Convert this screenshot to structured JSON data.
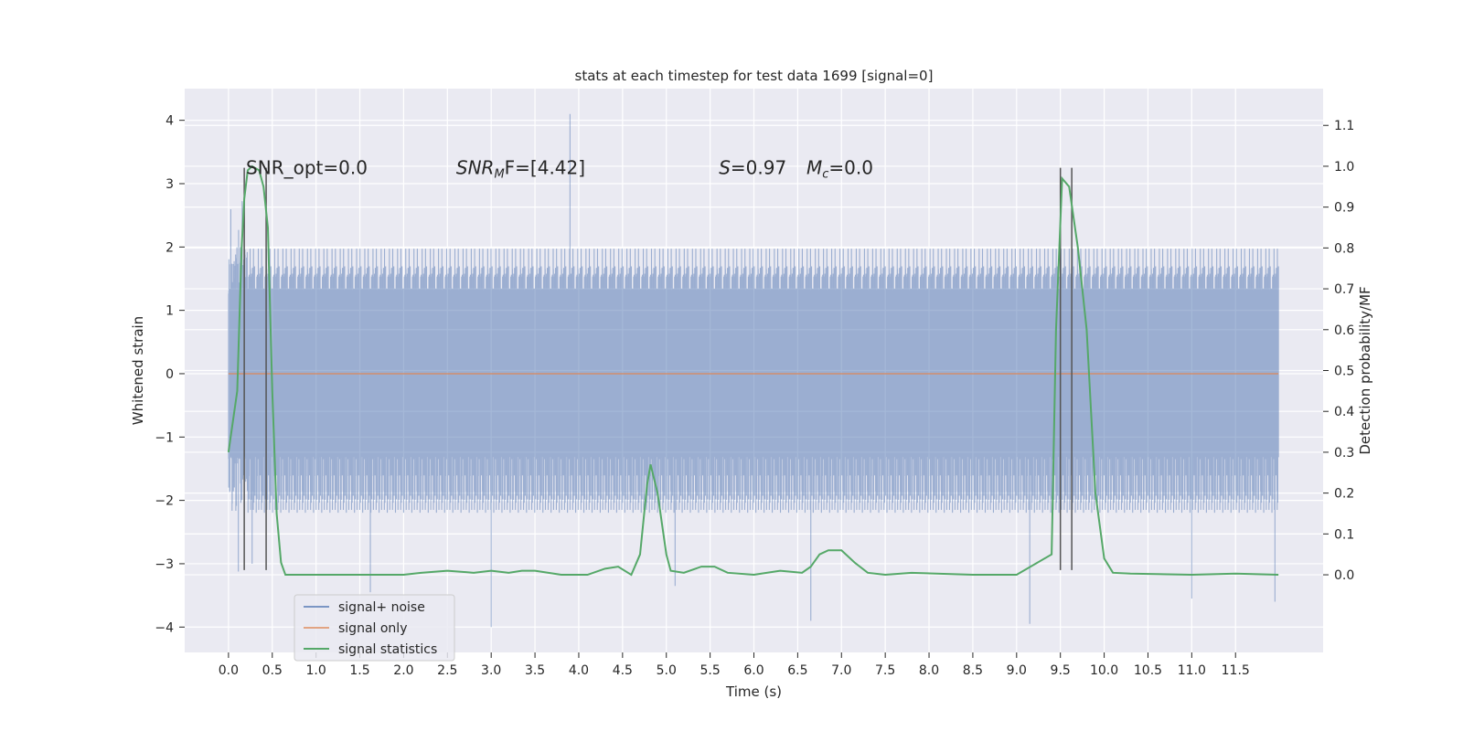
{
  "chart_data": {
    "type": "line",
    "title": "stats at each timestep for test data 1699 [signal=0]",
    "xlabel": "Time (s)",
    "ylabel_left": "Whitened strain",
    "ylabel_right": "Detection probability/MF",
    "xlim": [
      -0.5,
      12.5
    ],
    "ylim_left": [
      -4.4,
      4.5
    ],
    "ylim_right": [
      -0.19,
      1.19
    ],
    "x_ticks": [
      0.0,
      0.5,
      1.0,
      1.5,
      2.0,
      2.5,
      3.0,
      3.5,
      4.0,
      4.5,
      5.0,
      5.5,
      6.0,
      6.5,
      7.0,
      7.5,
      8.0,
      8.5,
      9.0,
      9.5,
      10.0,
      10.5,
      11.0,
      11.5
    ],
    "x_tick_labels": [
      "0.0",
      "0.5",
      "1.0",
      "1.5",
      "2.0",
      "2.5",
      "3.0",
      "3.5",
      "4.0",
      "4.5",
      "5.0",
      "5.5",
      "6.0",
      "6.5",
      "7.0",
      "7.5",
      "8.0",
      "8.5",
      "9.0",
      "9.5",
      "10.0",
      "10.5",
      "11.0",
      "11.5"
    ],
    "y_left_ticks": [
      -4,
      -3,
      -2,
      -1,
      0,
      1,
      2,
      3,
      4
    ],
    "y_left_tick_labels": [
      "−4",
      "−3",
      "−2",
      "−1",
      "0",
      "1",
      "2",
      "3",
      "4"
    ],
    "y_right_ticks": [
      0.0,
      0.1,
      0.2,
      0.3,
      0.4,
      0.5,
      0.6,
      0.7,
      0.8,
      0.9,
      1.0,
      1.1
    ],
    "y_right_tick_labels": [
      "0.0",
      "0.1",
      "0.2",
      "0.3",
      "0.4",
      "0.5",
      "0.6",
      "0.7",
      "0.8",
      "0.9",
      "1.0",
      "1.1"
    ],
    "grid": true,
    "legend_placement": "lower-left",
    "series": [
      {
        "name": "signal+ noise",
        "axis": "left",
        "color": "#4c72b0",
        "x_range": [
          0.0,
          11.99
        ],
        "typical_range": [
          -1.3,
          1.3
        ],
        "envelope_range": [
          -2.2,
          2.0
        ],
        "min": -4.0,
        "max": 4.1
      },
      {
        "name": "signal only",
        "axis": "left",
        "color": "#dd8452",
        "x": [
          0.0,
          11.99
        ],
        "y": [
          0.0,
          0.0
        ]
      },
      {
        "name": "signal statistics",
        "axis": "right",
        "color": "#55a868",
        "x": [
          0.0,
          0.1,
          0.15,
          0.18,
          0.22,
          0.27,
          0.35,
          0.4,
          0.45,
          0.5,
          0.55,
          0.6,
          0.65,
          0.7,
          1.0,
          2.0,
          2.2,
          2.5,
          2.8,
          3.0,
          3.2,
          3.35,
          3.5,
          3.8,
          4.1,
          4.3,
          4.45,
          4.6,
          4.7,
          4.78,
          4.82,
          4.9,
          5.0,
          5.05,
          5.2,
          5.4,
          5.55,
          5.7,
          6.0,
          6.3,
          6.55,
          6.65,
          6.75,
          6.85,
          7.0,
          7.15,
          7.3,
          7.5,
          7.8,
          8.5,
          9.0,
          9.4,
          9.45,
          9.52,
          9.6,
          9.7,
          9.8,
          9.9,
          10.0,
          10.1,
          10.3,
          11.0,
          11.5,
          11.99
        ],
        "y": [
          0.3,
          0.45,
          0.8,
          0.92,
          0.99,
          1.0,
          0.99,
          0.95,
          0.85,
          0.45,
          0.15,
          0.03,
          0.0,
          0.0,
          0.0,
          0.0,
          0.005,
          0.01,
          0.005,
          0.01,
          0.005,
          0.01,
          0.01,
          0.0,
          0.0,
          0.015,
          0.02,
          0.0,
          0.05,
          0.22,
          0.27,
          0.2,
          0.05,
          0.01,
          0.005,
          0.02,
          0.02,
          0.005,
          0.0,
          0.01,
          0.005,
          0.02,
          0.05,
          0.06,
          0.06,
          0.03,
          0.005,
          0.0,
          0.005,
          0.0,
          0.0,
          0.05,
          0.6,
          0.97,
          0.95,
          0.8,
          0.6,
          0.2,
          0.04,
          0.005,
          0.003,
          0.0,
          0.003,
          0.0
        ]
      }
    ],
    "vertical_lines_x": [
      0.18,
      0.43,
      9.5,
      9.63
    ],
    "vertical_lines_ymin": -3.1,
    "vertical_lines_ymax": 3.25,
    "vertical_lines_color": "#555555",
    "annotations": [
      {
        "text": "SNR_opt=0.0",
        "x": 0.2,
        "y": 3.15
      },
      {
        "text": "SNR",
        "sub": "M",
        "suffix": "F=[4.42]",
        "x": 2.6,
        "y": 3.15
      },
      {
        "text": "S",
        "suffix": "=0.97",
        "x": 5.6,
        "y": 3.15
      },
      {
        "text": "M",
        "sub": "c",
        "suffix": "=0.0",
        "x": 6.6,
        "y": 3.15
      }
    ]
  },
  "legend": {
    "items": [
      {
        "label": "signal+ noise",
        "color": "#4c72b0"
      },
      {
        "label": "signal only",
        "color": "#dd8452"
      },
      {
        "label": "signal statistics",
        "color": "#55a868"
      }
    ]
  },
  "colors": {
    "plot_background": "#eaeaf2",
    "grid": "#ffffff"
  }
}
